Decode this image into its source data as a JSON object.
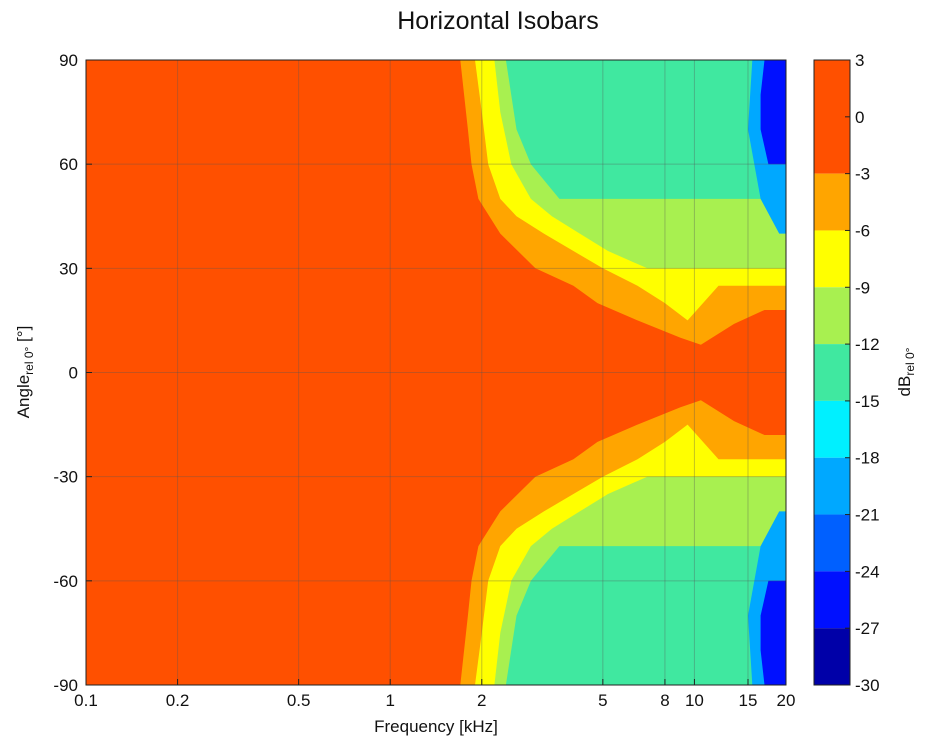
{
  "chart_data": {
    "type": "heatmap",
    "title": "Horizontal Isobars",
    "xlabel": "Frequency [kHz]",
    "ylabel": {
      "main": "Angle",
      "sub": "rel 0°",
      "unit": " [°]"
    },
    "colorbar_label": {
      "main": "dB",
      "sub": "rel 0°"
    },
    "x_scale": "log",
    "xlim": [
      0.1,
      20
    ],
    "ylim": [
      -90,
      90
    ],
    "x_ticks": [
      0.1,
      0.2,
      0.5,
      1,
      2,
      5,
      8,
      10,
      15,
      20
    ],
    "x_tick_labels": [
      "0.1",
      "0.2",
      "0.5",
      "1",
      "2",
      "5",
      "8",
      "10",
      "15",
      "20"
    ],
    "y_ticks": [
      90,
      60,
      30,
      0,
      -30,
      -60,
      -90
    ],
    "y_tick_labels": [
      "90",
      "60",
      "30",
      "0",
      "-30",
      "-60",
      "-90"
    ],
    "grid": true,
    "colorbar": {
      "levels": [
        3,
        0,
        -3,
        -6,
        -9,
        -12,
        -15,
        -18,
        -21,
        -24,
        -27,
        -30
      ],
      "level_labels": [
        "3",
        "0",
        "-3",
        "-6",
        "-9",
        "-12",
        "-15",
        "-18",
        "-21",
        "-24",
        "-27",
        "-30"
      ],
      "bands": [
        {
          "range": [
            -3,
            3
          ],
          "color": "#ff5000"
        },
        {
          "range": [
            -6,
            -3
          ],
          "color": "#ffa500"
        },
        {
          "range": [
            -9,
            -6
          ],
          "color": "#ffff00"
        },
        {
          "range": [
            -12,
            -9
          ],
          "color": "#a8f050"
        },
        {
          "range": [
            -15,
            -12
          ],
          "color": "#40e8a0"
        },
        {
          "range": [
            -18,
            -15
          ],
          "color": "#00f0ff"
        },
        {
          "range": [
            -21,
            -18
          ],
          "color": "#00a8ff"
        },
        {
          "range": [
            -24,
            -21
          ],
          "color": "#0060ff"
        },
        {
          "range": [
            -27,
            -24
          ],
          "color": "#0010ff"
        },
        {
          "range": [
            -30,
            -27
          ],
          "color": "#0000a8"
        }
      ]
    },
    "contours_upper_half": [
      {
        "level": -3,
        "angle_deg": [
          90,
          80,
          70,
          60,
          50,
          40,
          30,
          25,
          20,
          15,
          10,
          8,
          14,
          18,
          18
        ],
        "freq_khz": [
          1.7,
          1.75,
          1.8,
          1.85,
          1.95,
          2.3,
          3.0,
          4.0,
          4.8,
          6.5,
          9.0,
          10.5,
          13.5,
          17.0,
          20.0
        ]
      },
      {
        "level": -6,
        "angle_deg": [
          90,
          75,
          60,
          50,
          45,
          40,
          35,
          30,
          25,
          20,
          15,
          25
        ],
        "freq_khz": [
          1.9,
          2.0,
          2.1,
          2.3,
          2.6,
          3.2,
          4.0,
          5.0,
          6.5,
          8.0,
          9.5,
          12.0
        ]
      },
      {
        "level": -9,
        "angle_deg": [
          90,
          75,
          60,
          50,
          45,
          40,
          35,
          30
        ],
        "freq_khz": [
          2.2,
          2.3,
          2.5,
          2.9,
          3.4,
          4.2,
          5.2,
          7.0
        ]
      },
      {
        "level": -12,
        "angle_deg": [
          90,
          70,
          60,
          50
        ],
        "freq_khz": [
          2.4,
          2.6,
          2.9,
          3.6
        ]
      },
      {
        "level": -18,
        "angle_deg": [
          90,
          70,
          50,
          40
        ],
        "freq_khz": [
          15.5,
          15.0,
          16.5,
          19.0
        ]
      },
      {
        "level": -24,
        "angle_deg": [
          90,
          80,
          70,
          60
        ],
        "freq_khz": [
          17.0,
          16.5,
          16.5,
          17.5
        ]
      }
    ],
    "symmetry": "mirror about 0°"
  }
}
